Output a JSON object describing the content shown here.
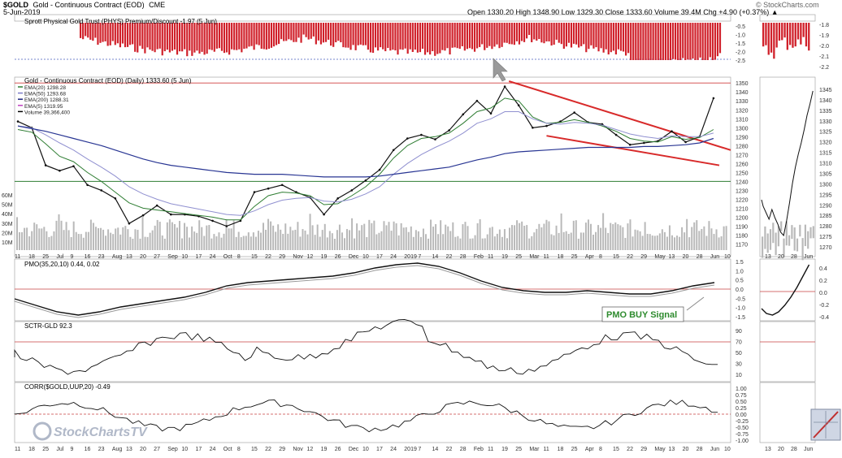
{
  "header": {
    "symbol": "$GOLD",
    "name": "Gold - Continuous Contract (EOD)",
    "exchange": "CME",
    "date": "5-Jun-2019",
    "quote": "Open 1330.20  High 1348.90  Low 1329.30  Close 1333.60  Volume 39.4M  Chg +4.90 (+0.37%) ▲",
    "watermark": "© StockCharts.com",
    "logo": "StockChartsTV"
  },
  "panels": {
    "premium": {
      "title": "Sprott Physical Gold Trust (PHYS) Premium/Discount -1.97 (5 Jun)",
      "ticks": [
        "-0.5",
        "-1.0",
        "-1.5",
        "-2.0",
        "-2.5"
      ],
      "ticks_right": [
        "-1.8",
        "-1.9",
        "-2.0",
        "-2.1",
        "-2.2"
      ],
      "color": "#d0202a"
    },
    "price": {
      "title": "Gold - Continuous Contract (EOD) (Daily) 1333.60 (5 Jun)",
      "legend": [
        {
          "label": "EMA(20) 1298.28",
          "color": "#2e7d32"
        },
        {
          "label": "EMA(50) 1293.68",
          "color": "#7b7bc8"
        },
        {
          "label": "EMA(200) 1288.31",
          "color": "#1a237e"
        },
        {
          "label": "EMA(5) 1319.95",
          "color": "#c040c0"
        },
        {
          "label": "Volume 39,366,400",
          "color": "#000000"
        }
      ],
      "ticks": [
        "1350",
        "1340",
        "1330",
        "1320",
        "1310",
        "1300",
        "1290",
        "1280",
        "1270",
        "1260",
        "1250",
        "1240",
        "1230",
        "1220",
        "1210",
        "1200",
        "1190",
        "1180",
        "1170"
      ],
      "ticks_right": [
        "1345",
        "1340",
        "1335",
        "1330",
        "1325",
        "1320",
        "1315",
        "1310",
        "1305",
        "1300",
        "1295",
        "1290",
        "1285",
        "1280",
        "1275",
        "1270"
      ],
      "volume_ticks": [
        "60M",
        "50M",
        "40M",
        "30M",
        "20M",
        "10M"
      ]
    },
    "pmo": {
      "title": "PMO(35,20,10) 0.44, 0.02",
      "ticks": [
        "1.5",
        "1.0",
        "0.5",
        "0.0",
        "-0.5",
        "-1.0",
        "-1.5"
      ],
      "ticks_right": [
        "0.4",
        "0.2",
        "0.0",
        "-0.2",
        "-0.4"
      ],
      "annotation": "PMO BUY Signal"
    },
    "sctr": {
      "title": "SCTR-GLD 92.3",
      "ticks": [
        "90",
        "70",
        "50",
        "30",
        "10"
      ]
    },
    "corr": {
      "title": "CORR($GOLD,UUP,20) -0.49",
      "ticks": [
        "1.00",
        "0.75",
        "0.50",
        "0.25",
        "0.00",
        "-0.25",
        "-0.50",
        "-0.75",
        "-1.00"
      ]
    }
  },
  "x_axis": {
    "labels": [
      "11",
      "18",
      "25",
      "Jul",
      "9",
      "16",
      "23",
      "Aug",
      "13",
      "20",
      "27",
      "Sep",
      "10",
      "17",
      "24",
      "Oct",
      "8",
      "15",
      "22",
      "29",
      "Nov",
      "12",
      "19",
      "26",
      "Dec",
      "10",
      "17",
      "24",
      "2019",
      "7",
      "14",
      "22",
      "28",
      "Feb",
      "11",
      "19",
      "25",
      "Mar",
      "11",
      "18",
      "25",
      "Apr",
      "8",
      "15",
      "22",
      "29",
      "May",
      "13",
      "20",
      "28",
      "Jun",
      "10"
    ],
    "labels_right": [
      "13",
      "20",
      "28",
      "Jun"
    ]
  },
  "chart_data": {
    "type": "line",
    "title": "Gold - Continuous Contract (EOD) (Daily) 1333.60 (5 Jun)",
    "x": [
      "11",
      "18",
      "25",
      "Jul",
      "9",
      "16",
      "23",
      "Aug",
      "13",
      "20",
      "27",
      "Sep",
      "10",
      "17",
      "24",
      "Oct",
      "8",
      "15",
      "22",
      "29",
      "Nov",
      "12",
      "19",
      "26",
      "Dec",
      "10",
      "17",
      "24",
      "2019",
      "7",
      "14",
      "22",
      "28",
      "Feb",
      "11",
      "19",
      "25",
      "Mar",
      "11",
      "18",
      "25",
      "Apr",
      "8",
      "15",
      "22",
      "29",
      "May",
      "13",
      "20",
      "28",
      "Jun",
      "10"
    ],
    "series": [
      {
        "name": "Gold - Continuous Contract (EOD)",
        "values": [
          1307,
          1300,
          1258,
          1252,
          1257,
          1236,
          1230,
          1221,
          1193,
          1202,
          1213,
          1203,
          1203,
          1201,
          1196,
          1190,
          1196,
          1228,
          1232,
          1236,
          1228,
          1222,
          1203,
          1221,
          1230,
          1241,
          1253,
          1275,
          1288,
          1292,
          1287,
          1297,
          1315,
          1330,
          1316,
          1346,
          1325,
          1300,
          1302,
          1307,
          1317,
          1306,
          1304,
          1292,
          1281,
          1283,
          1285,
          1296,
          1284,
          1290,
          1333,
          null
        ]
      },
      {
        "name": "EMA(20)",
        "values": [
          1298,
          1295,
          1282,
          1268,
          1262,
          1250,
          1240,
          1228,
          1216,
          1210,
          1208,
          1206,
          1204,
          1202,
          1200,
          1197,
          1197,
          1212,
          1224,
          1228,
          1227,
          1224,
          1214,
          1215,
          1224,
          1234,
          1248,
          1266,
          1280,
          1288,
          1290,
          1294,
          1305,
          1318,
          1322,
          1333,
          1330,
          1312,
          1305,
          1306,
          1309,
          1306,
          1302,
          1296,
          1288,
          1285,
          1284,
          1290,
          1287,
          1289,
          1298,
          null
        ]
      },
      {
        "name": "EMA(50)",
        "values": [
          1302,
          1300,
          1292,
          1283,
          1275,
          1265,
          1256,
          1246,
          1234,
          1226,
          1220,
          1215,
          1212,
          1209,
          1206,
          1203,
          1202,
          1207,
          1214,
          1219,
          1221,
          1222,
          1218,
          1217,
          1220,
          1226,
          1234,
          1248,
          1260,
          1270,
          1278,
          1285,
          1294,
          1305,
          1310,
          1318,
          1318,
          1310,
          1305,
          1304,
          1306,
          1305,
          1303,
          1298,
          1293,
          1290,
          1288,
          1291,
          1290,
          1290,
          1294,
          null
        ]
      },
      {
        "name": "EMA(200)",
        "values": [
          1302,
          1299,
          1296,
          1292,
          1288,
          1284,
          1280,
          1275,
          1270,
          1265,
          1261,
          1258,
          1256,
          1254,
          1252,
          1250,
          1249,
          1248,
          1248,
          1248,
          1247,
          1246,
          1245,
          1245,
          1245,
          1245,
          1246,
          1248,
          1250,
          1252,
          1254,
          1256,
          1260,
          1264,
          1267,
          1271,
          1273,
          1274,
          1275,
          1276,
          1277,
          1278,
          1278,
          1278,
          1278,
          1279,
          1279,
          1280,
          1281,
          1283,
          1288,
          null
        ]
      }
    ],
    "ylim": [
      1165,
      1352
    ],
    "annotations": [
      "PMO BUY Signal"
    ]
  }
}
